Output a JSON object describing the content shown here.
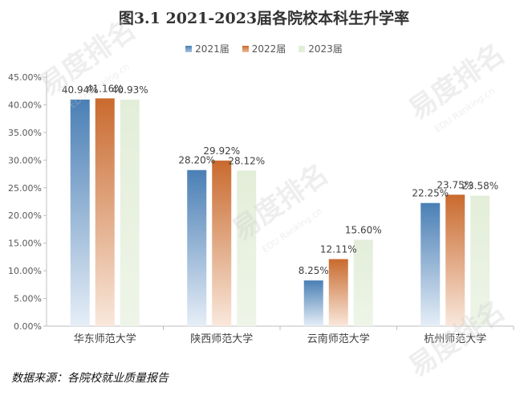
{
  "chart_data": {
    "type": "bar",
    "title": "图3.1 2021-2023届各院校本科生升学率",
    "categories": [
      "华东师范大学",
      "陕西师范大学",
      "云南师范大学",
      "杭州师范大学"
    ],
    "series": [
      {
        "name": "2021届",
        "values": [
          40.94,
          28.2,
          8.25,
          22.25
        ],
        "labels": [
          "40.94%",
          "28.20%",
          "8.25%",
          "22.25%"
        ],
        "color_top": "#4a7fb5",
        "color_bottom": "#e6eef7"
      },
      {
        "name": "2022届",
        "values": [
          41.16,
          29.92,
          12.11,
          23.75
        ],
        "labels": [
          "41.16%",
          "29.92%",
          "12.11%",
          "23.75%"
        ],
        "color_top": "#c96a2e",
        "color_bottom": "#f9e8dc"
      },
      {
        "name": "2023届",
        "values": [
          40.93,
          28.12,
          15.6,
          23.58
        ],
        "labels": [
          "40.93%",
          "28.12%",
          "15.60%",
          "23.58%"
        ],
        "color_top": "#e3eed9",
        "color_bottom": "#eef5e8"
      }
    ],
    "yticks": [
      "0.00%",
      "5.00%",
      "10.00%",
      "15.00%",
      "20.00%",
      "25.00%",
      "30.00%",
      "35.00%",
      "40.00%",
      "45.00%"
    ],
    "ylim": [
      0,
      45
    ],
    "grid": false,
    "legend_position": "top-center"
  },
  "source_note": "数据来源：各院校就业质量报告",
  "watermark": {
    "brand": "易度排名",
    "sub": "EDU Ranking.cn"
  }
}
